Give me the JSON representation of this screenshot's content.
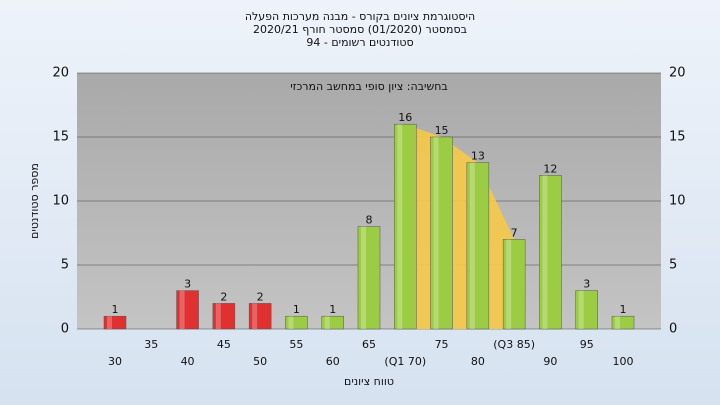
{
  "chart_data": {
    "type": "bar",
    "title": "היסטוגרמת ציונים בקורס - מבנה מערכות הפעלה",
    "subtitle": "בסמסטר  (01/2020)  סמסטר חורף  2020/21",
    "subtitle2": "סטודנטים רשומים - 94",
    "annotation": "בחשיבה: ציון סופי במחשב המרכזי",
    "x_label": "טווח ציונים",
    "y_label": "מספר סטודנטים",
    "categories": [
      "30",
      "35",
      "40",
      "45",
      "50",
      "55",
      "60",
      "65",
      "(Q1 70)",
      "75",
      "80",
      "(Q3 85)",
      "90",
      "95",
      "100"
    ],
    "values": [
      1,
      null,
      3,
      2,
      2,
      1,
      1,
      8,
      16,
      15,
      13,
      7,
      12,
      3,
      1
    ],
    "colors": [
      "#e03030",
      "#e03030",
      "#e03030",
      "#e03030",
      "#e03030",
      "#9ccc44",
      "#9ccc44",
      "#9ccc44",
      "#9ccc44",
      "#9ccc44",
      "#9ccc44",
      "#9ccc44",
      "#9ccc44",
      "#9ccc44",
      "#9ccc44"
    ],
    "quartile_shade_color": "#f7c948",
    "ylim": [
      0,
      20
    ],
    "yticks": [
      0,
      5,
      10,
      15,
      20
    ],
    "grid": true
  }
}
